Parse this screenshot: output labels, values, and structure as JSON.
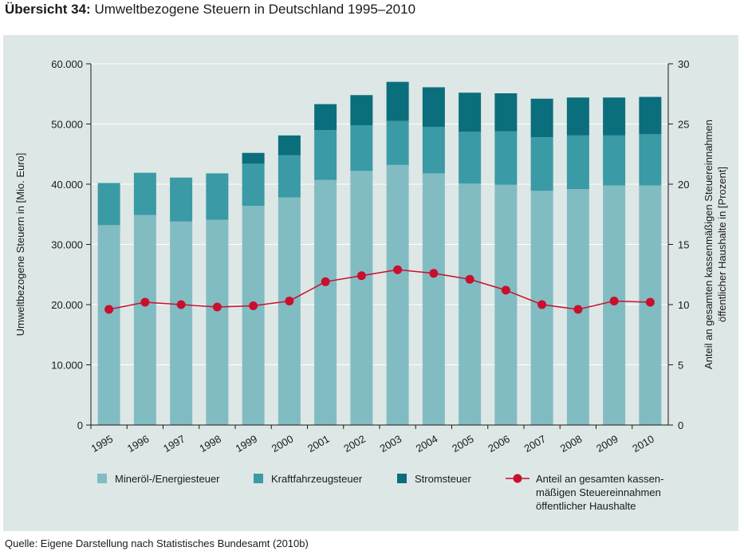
{
  "heading": {
    "label": "Übersicht 34:",
    "title": "Umweltbezogene Steuern in Deutschland 1995–2010"
  },
  "source": "Quelle: Eigene Darstellung nach Statistisches Bundesamt (2010b)",
  "colors": {
    "panel": "#dde7e6",
    "mineral": "#82bcc3",
    "kfz": "#3a9aa5",
    "strom": "#0b6e7c",
    "anteil": "#c8102e"
  },
  "chart_data": {
    "type": "bar",
    "stacked": true,
    "categories": [
      "1995",
      "1996",
      "1997",
      "1998",
      "1999",
      "2000",
      "2001",
      "2002",
      "2003",
      "2004",
      "2005",
      "2006",
      "2007",
      "2008",
      "2009",
      "2010"
    ],
    "series": [
      {
        "name": "Mineröl-/Energiesteuer",
        "values": [
          33200,
          34900,
          33800,
          34100,
          36400,
          37800,
          40700,
          42200,
          43200,
          41800,
          40100,
          39900,
          38900,
          39200,
          39800,
          39800
        ]
      },
      {
        "name": "Kraftfahrzeugsteuer",
        "values": [
          7000,
          7000,
          7300,
          7700,
          7000,
          7000,
          8300,
          7600,
          7300,
          7700,
          8600,
          8900,
          8900,
          8900,
          8300,
          8500
        ]
      },
      {
        "name": "Stromsteuer",
        "values": [
          0,
          0,
          0,
          0,
          1800,
          3300,
          4300,
          5000,
          6500,
          6600,
          6500,
          6300,
          6400,
          6300,
          6300,
          6200
        ]
      }
    ],
    "line": {
      "name": "Anteil an gesamten kassen-mäßigen Steuereinnahmen öffentlicher Haushalte",
      "axis": "right",
      "values": [
        9.6,
        10.2,
        10.0,
        9.8,
        9.9,
        10.3,
        11.9,
        12.4,
        12.9,
        12.6,
        12.1,
        11.2,
        10.0,
        9.6,
        10.3,
        10.2
      ]
    },
    "ylabel": "Umweltbezogene Steuern in [Mio. Euro]",
    "y2label_lines": [
      "Anteil an gesamten kassenmäßigen Steuereinnahmen",
      "öffentlicher Haushalte in [Prozent]"
    ],
    "ylim": [
      0,
      60000
    ],
    "y2lim": [
      0,
      30
    ],
    "yticks": [
      "0",
      "10.000",
      "20.000",
      "30.000",
      "40.000",
      "50.000",
      "60.000"
    ],
    "y2ticks": [
      "0",
      "5",
      "10",
      "15",
      "20",
      "25",
      "30"
    ],
    "legend": [
      {
        "key": "mineral",
        "label_lines": [
          "Mineröl-/Energiesteuer"
        ]
      },
      {
        "key": "kfz",
        "label_lines": [
          "Kraftfahrzeugsteuer"
        ]
      },
      {
        "key": "strom",
        "label_lines": [
          "Stromsteuer"
        ]
      },
      {
        "key": "anteil",
        "label_lines": [
          "Anteil an gesamten kassen-",
          "mäßigen Steuereinnahmen",
          "öffentlicher Haushalte"
        ]
      }
    ]
  }
}
